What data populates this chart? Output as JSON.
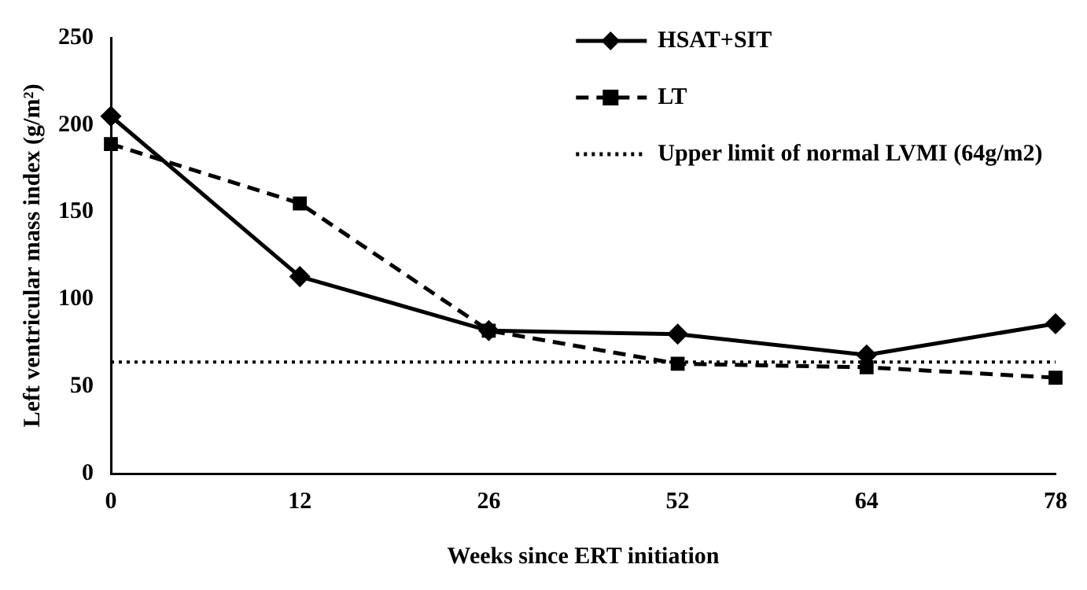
{
  "chart_data": {
    "type": "line",
    "xlabel": "Weeks since ERT initiation",
    "ylabel": "Left ventricular mass index (g/m²)",
    "categories": [
      "0",
      "12",
      "26",
      "52",
      "64",
      "78"
    ],
    "series": [
      {
        "name": "HSAT+SIT",
        "color": "#000000",
        "marker": "diamond",
        "line_style": "solid",
        "values": [
          205,
          113,
          82,
          80,
          68,
          86
        ]
      },
      {
        "name": "LT",
        "color": "#000000",
        "marker": "square",
        "line_style": "dashed",
        "values": [
          189,
          155,
          82,
          63,
          61,
          55
        ]
      }
    ],
    "ref_lines": [
      {
        "axis": "y",
        "value": 64,
        "label": "Upper limit of normal LVMI (64g/m2)",
        "color": "#000000",
        "line_style": "dotted"
      }
    ],
    "ylim": [
      0,
      250
    ],
    "yticks": [
      0,
      50,
      100,
      150,
      200,
      250
    ],
    "grid": false,
    "legend": "top right"
  }
}
